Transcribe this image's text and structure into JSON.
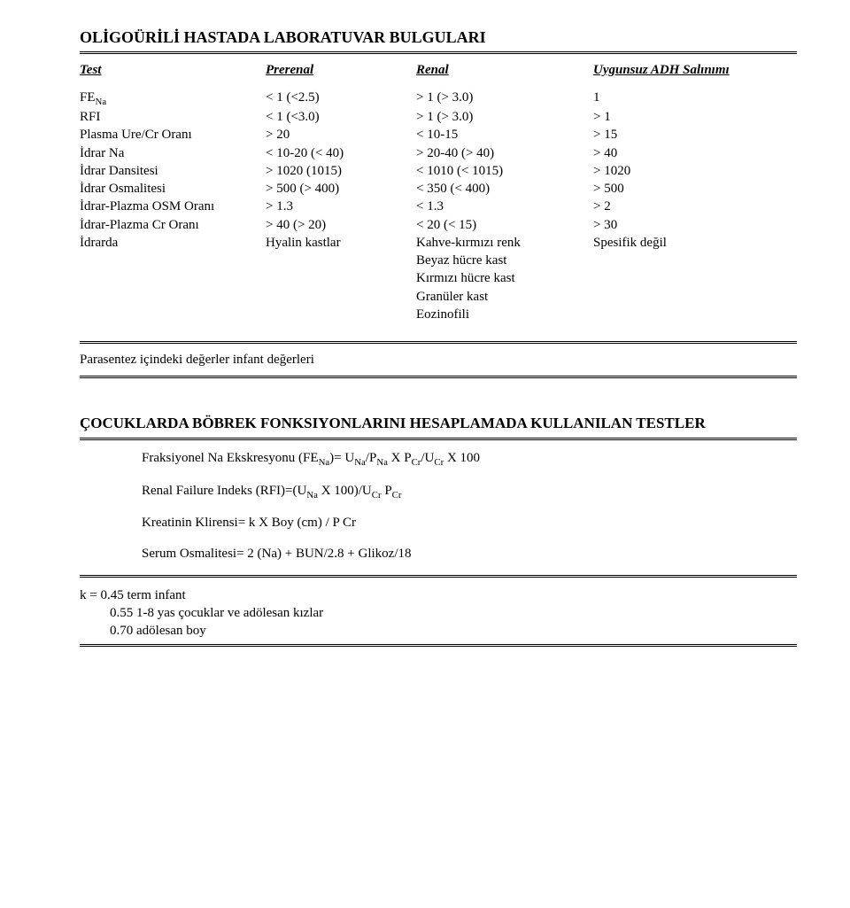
{
  "title": "OLİGOÜRİLİ HASTADA LABORATUVAR BULGULARI",
  "headers": {
    "test": "Test",
    "prerenal": "Prerenal",
    "renal": "Renal",
    "adh": "Uygunsuz ADH Salınımı"
  },
  "rows": [
    {
      "test_html": "FE<span class='sub'>Na</span>",
      "prerenal": "< 1 (<2.5)",
      "renal": "> 1 (> 3.0)",
      "adh": "1"
    },
    {
      "test_html": "RFI",
      "prerenal": "< 1 (<3.0)",
      "renal": "> 1 (> 3.0)",
      "adh": "> 1"
    },
    {
      "test_html": "Plasma Ure/Cr Oranı",
      "prerenal": "> 20",
      "renal": "< 10-15",
      "adh": "> 15"
    },
    {
      "test_html": "İdrar Na",
      "prerenal": "< 10-20 (< 40)",
      "renal": "> 20-40 (> 40)",
      "adh": "> 40"
    },
    {
      "test_html": "İdrar Dansitesi",
      "prerenal": "> 1020 (1015)",
      "renal": "< 1010 (< 1015)",
      "adh": "> 1020"
    },
    {
      "test_html": "İdrar Osmalitesi",
      "prerenal": "> 500 (> 400)",
      "renal": "< 350 (< 400)",
      "adh": "> 500"
    },
    {
      "test_html": "İdrar-Plazma OSM Oranı",
      "prerenal": "> 1.3",
      "renal": "< 1.3",
      "adh": "> 2"
    },
    {
      "test_html": "İdrar-Plazma Cr Oranı",
      "prerenal": "> 40 (> 20)",
      "renal": "< 20 (< 15)",
      "adh": "> 30"
    },
    {
      "test_html": "İdrarda",
      "prerenal": "Hyalin kastlar",
      "renal": "Kahve-kırmızı renk",
      "adh": "Spesifik değil"
    },
    {
      "test_html": "",
      "prerenal": "",
      "renal": "Beyaz hücre kast",
      "adh": ""
    },
    {
      "test_html": "",
      "prerenal": "",
      "renal": "Kırmızı hücre kast",
      "adh": ""
    },
    {
      "test_html": "",
      "prerenal": "",
      "renal": "Granüler kast",
      "adh": ""
    },
    {
      "test_html": "",
      "prerenal": "",
      "renal": "Eozinofili",
      "adh": ""
    }
  ],
  "note": "Parasentez içindeki değerler infant değerleri",
  "section2_title": "ÇOCUKLARDA BÖBREK FONKSIYONLARINI HESAPLAMADA KULLANILAN TESTLER",
  "formulas": {
    "fena_html": "Fraksiyonel Na Ekskresyonu (FE<span class='sub'>Na</span>)= U<span class='sub'>Na</span>/P<span class='sub'>Na</span> X P<span class='sub'>Cr</span>/U<span class='sub'>Cr</span> X 100",
    "rfi_html": "Renal Failure Indeks (RFI)=(U<span class='sub'>Na</span> X 100)/U<span class='sub'>Cr</span> P<span class='sub'>Cr</span>",
    "kcl": "Kreatinin Klirensi= k X Boy (cm) / P Cr",
    "osm": "Serum Osmalitesi= 2 (Na) + BUN/2.8 + Glikoz/18"
  },
  "k_values": {
    "l1": "k = 0.45 term infant",
    "l2": "0.55 1-8 yas çocuklar ve adölesan kızlar",
    "l3": "0.70 adölesan boy"
  }
}
